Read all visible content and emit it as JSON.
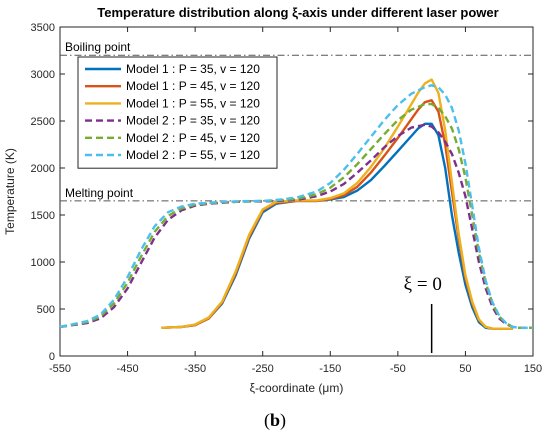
{
  "caption": {
    "open": "(",
    "letter": "b",
    "close": ")"
  },
  "chart_data": {
    "type": "line",
    "title": "Temperature distribution along ξ-axis under different laser power",
    "xlabel": "ξ-coordinate (μm)",
    "ylabel": "Temperature (K)",
    "xlim": [
      -550,
      150
    ],
    "ylim": [
      0,
      3500
    ],
    "xticks": [
      -550,
      -450,
      -350,
      -250,
      -150,
      -50,
      50,
      150
    ],
    "yticks": [
      0,
      500,
      1000,
      1500,
      2000,
      2500,
      3000,
      3500
    ],
    "grid": false,
    "legend_position": "top-left",
    "reference_lines": [
      {
        "label": "Boiling point",
        "y": 3200
      },
      {
        "label": "Melting point",
        "y": 1650
      }
    ],
    "annotation": {
      "text": "ξ = 0",
      "x": 0
    },
    "series": [
      {
        "name": "Model 1 : P = 35, v = 120",
        "color": "#0072BD",
        "style": "solid",
        "x": [
          -400,
          -370,
          -350,
          -330,
          -310,
          -290,
          -270,
          -250,
          -230,
          -200,
          -170,
          -150,
          -130,
          -110,
          -90,
          -70,
          -50,
          -30,
          -20,
          -10,
          0,
          10,
          20,
          30,
          40,
          50,
          60,
          70,
          80,
          90,
          100,
          110,
          120
        ],
        "y": [
          300,
          310,
          330,
          400,
          560,
          860,
          1250,
          1530,
          1620,
          1650,
          1650,
          1665,
          1690,
          1760,
          1870,
          2020,
          2180,
          2340,
          2420,
          2470,
          2470,
          2350,
          2000,
          1500,
          1100,
          760,
          520,
          360,
          300,
          290,
          290,
          290,
          290
        ]
      },
      {
        "name": "Model 1 : P = 45, v = 120",
        "color": "#D95319",
        "style": "solid",
        "x": [
          -400,
          -370,
          -350,
          -330,
          -310,
          -290,
          -270,
          -250,
          -230,
          -200,
          -170,
          -150,
          -130,
          -110,
          -90,
          -70,
          -50,
          -30,
          -20,
          -10,
          0,
          10,
          20,
          30,
          40,
          50,
          60,
          70,
          80,
          90,
          100,
          110,
          120
        ],
        "y": [
          300,
          310,
          330,
          400,
          570,
          880,
          1270,
          1550,
          1630,
          1650,
          1650,
          1670,
          1710,
          1800,
          1950,
          2130,
          2320,
          2520,
          2620,
          2700,
          2720,
          2600,
          2250,
          1750,
          1250,
          830,
          560,
          380,
          310,
          290,
          290,
          290,
          290
        ]
      },
      {
        "name": "Model 1 : P = 55, v = 120",
        "color": "#EDB120",
        "style": "solid",
        "x": [
          -400,
          -370,
          -350,
          -330,
          -310,
          -290,
          -270,
          -250,
          -230,
          -200,
          -170,
          -150,
          -130,
          -110,
          -90,
          -70,
          -50,
          -30,
          -20,
          -10,
          0,
          10,
          20,
          30,
          40,
          50,
          60,
          70,
          80,
          90,
          100,
          110,
          120
        ],
        "y": [
          300,
          310,
          335,
          410,
          580,
          900,
          1290,
          1560,
          1640,
          1655,
          1655,
          1680,
          1730,
          1840,
          2010,
          2210,
          2440,
          2680,
          2800,
          2900,
          2940,
          2800,
          2400,
          1850,
          1300,
          860,
          580,
          390,
          310,
          290,
          290,
          290,
          290
        ]
      },
      {
        "name": "Model 2 : P = 35, v = 120",
        "color": "#7E2F8E",
        "style": "dashed",
        "x": [
          -550,
          -510,
          -490,
          -470,
          -450,
          -430,
          -410,
          -390,
          -370,
          -350,
          -330,
          -310,
          -290,
          -270,
          -250,
          -230,
          -200,
          -170,
          -150,
          -130,
          -110,
          -90,
          -70,
          -50,
          -30,
          -10,
          0,
          10,
          20,
          30,
          40,
          50,
          60,
          70,
          80,
          90,
          100,
          110,
          120,
          130,
          140,
          150
        ],
        "y": [
          310,
          350,
          400,
          520,
          720,
          990,
          1260,
          1450,
          1550,
          1600,
          1620,
          1630,
          1640,
          1645,
          1645,
          1650,
          1660,
          1700,
          1750,
          1830,
          1950,
          2080,
          2220,
          2340,
          2430,
          2460,
          2440,
          2380,
          2280,
          2150,
          1950,
          1700,
          1350,
          1000,
          720,
          520,
          400,
          340,
          310,
          300,
          300,
          300
        ]
      },
      {
        "name": "Model 2 : P = 45, v = 120",
        "color": "#77AC30",
        "style": "dashed",
        "x": [
          -550,
          -510,
          -490,
          -470,
          -450,
          -430,
          -410,
          -390,
          -370,
          -350,
          -330,
          -310,
          -290,
          -270,
          -250,
          -230,
          -200,
          -170,
          -150,
          -130,
          -110,
          -90,
          -70,
          -50,
          -30,
          -10,
          0,
          10,
          20,
          30,
          40,
          50,
          60,
          70,
          80,
          90,
          100,
          110,
          120,
          130,
          140,
          150
        ],
        "y": [
          310,
          360,
          420,
          560,
          780,
          1060,
          1320,
          1490,
          1570,
          1610,
          1625,
          1635,
          1640,
          1645,
          1650,
          1655,
          1670,
          1720,
          1790,
          1900,
          2040,
          2200,
          2360,
          2510,
          2620,
          2680,
          2680,
          2640,
          2550,
          2420,
          2200,
          1900,
          1500,
          1100,
          780,
          560,
          420,
          350,
          310,
          300,
          300,
          300
        ]
      },
      {
        "name": "Model 2 : P = 55, v = 120",
        "color": "#4DBEEE",
        "style": "dashed",
        "x": [
          -550,
          -510,
          -490,
          -470,
          -450,
          -430,
          -410,
          -390,
          -370,
          -350,
          -330,
          -310,
          -290,
          -270,
          -250,
          -230,
          -200,
          -170,
          -150,
          -130,
          -110,
          -90,
          -70,
          -50,
          -30,
          -10,
          0,
          10,
          20,
          30,
          40,
          50,
          60,
          70,
          80,
          90,
          100,
          110,
          120,
          130,
          140,
          150
        ],
        "y": [
          310,
          370,
          440,
          600,
          840,
          1130,
          1380,
          1530,
          1590,
          1620,
          1630,
          1640,
          1645,
          1648,
          1650,
          1660,
          1685,
          1750,
          1840,
          1980,
          2150,
          2330,
          2510,
          2670,
          2790,
          2860,
          2880,
          2860,
          2780,
          2640,
          2400,
          2050,
          1600,
          1150,
          800,
          570,
          430,
          350,
          310,
          300,
          300,
          300
        ]
      }
    ]
  }
}
